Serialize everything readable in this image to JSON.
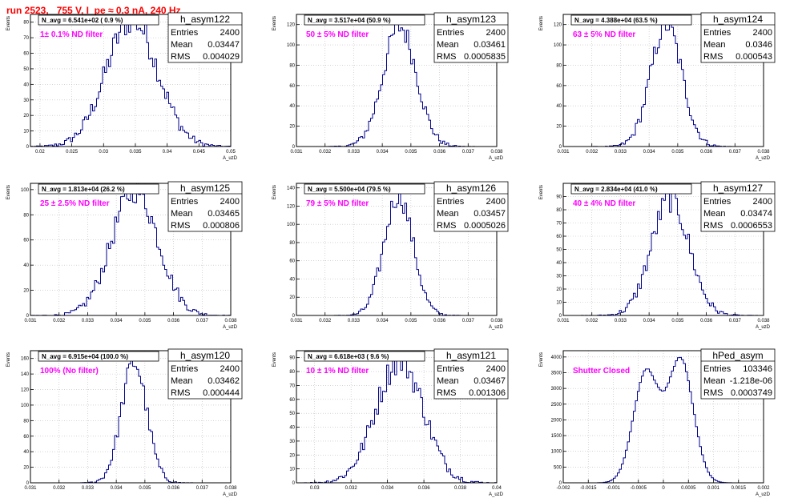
{
  "run_title": "run 2523,   755 V, I_pe ≈ 0.3 nA, 240 Hz",
  "colors": {
    "line": "#00008b",
    "title": "#ff0000",
    "filter_text": "#ff00ff",
    "grid": "#bbbbbb",
    "frame": "#000000"
  },
  "chart_data": [
    {
      "type": "histogram",
      "name": "h_asym122",
      "navg": "N_avg = 6.541e+02 ( 0.9 %)",
      "filter": "1± 0.1% ND filter",
      "stats": {
        "Entries": "2400",
        "Mean": "0.03447",
        "RMS": "0.004029"
      },
      "xlabel": "A_uzD",
      "ylabel": "Events",
      "xlim": [
        0.0185,
        0.05
      ],
      "ylim": [
        0,
        85
      ],
      "xticks": [
        0.02,
        0.025,
        0.03,
        0.035,
        0.04,
        0.045,
        0.05
      ],
      "xtick_labels": [
        "0.02",
        "0.025",
        "0.03",
        "0.035",
        "0.04",
        "0.045",
        "0.05"
      ],
      "yticks": [
        0,
        10,
        20,
        30,
        40,
        50,
        60,
        70,
        80
      ],
      "ytick_labels": [
        "0",
        "10",
        "20",
        "30",
        "40",
        "50",
        "60",
        "70",
        "80"
      ],
      "grid": true,
      "mean": 0.03447,
      "rms": 0.004029,
      "peak": 82,
      "bins": 100
    },
    {
      "type": "histogram",
      "name": "h_asym123",
      "navg": "N_avg = 3.517e+04 (50.9 %)",
      "filter": "50 ± 5% ND filter",
      "stats": {
        "Entries": "2400",
        "Mean": "0.03461",
        "RMS": "0.0005835"
      },
      "xlabel": "A_uzD",
      "ylabel": "Events",
      "xlim": [
        0.031,
        0.038
      ],
      "ylim": [
        0,
        130
      ],
      "xticks": [
        0.031,
        0.032,
        0.033,
        0.034,
        0.035,
        0.036,
        0.037,
        0.038
      ],
      "xtick_labels": [
        "0.031",
        "0.032",
        "0.033",
        "0.034",
        "0.035",
        "0.036",
        "0.037",
        "0.038"
      ],
      "yticks": [
        0,
        20,
        40,
        60,
        80,
        100,
        120
      ],
      "ytick_labels": [
        "0",
        "20",
        "40",
        "60",
        "80",
        "100",
        "120"
      ],
      "grid": true,
      "mean": 0.03461,
      "rms": 0.0005835,
      "peak": 118,
      "bins": 100
    },
    {
      "type": "histogram",
      "name": "h_asym124",
      "navg": "N_avg = 4.388e+04 (63.5 %)",
      "filter": "63 ± 5% ND filter",
      "stats": {
        "Entries": "2400",
        "Mean": "0.0346",
        "RMS": "0.000543"
      },
      "xlabel": "A_uzD",
      "ylabel": "Events",
      "xlim": [
        0.031,
        0.038
      ],
      "ylim": [
        0,
        130
      ],
      "xticks": [
        0.031,
        0.032,
        0.033,
        0.034,
        0.035,
        0.036,
        0.037,
        0.038
      ],
      "xtick_labels": [
        "0.031",
        "0.032",
        "0.033",
        "0.034",
        "0.035",
        "0.036",
        "0.037",
        "0.038"
      ],
      "yticks": [
        0,
        20,
        40,
        60,
        80,
        100,
        120
      ],
      "ytick_labels": [
        "0",
        "20",
        "40",
        "60",
        "80",
        "100",
        "120"
      ],
      "grid": true,
      "mean": 0.0346,
      "rms": 0.000543,
      "peak": 120,
      "bins": 100
    },
    {
      "type": "histogram",
      "name": "h_asym125",
      "navg": "N_avg = 1.813e+04 (26.2 %)",
      "filter": "25 ± 2.5% ND filter",
      "stats": {
        "Entries": "2400",
        "Mean": "0.03465",
        "RMS": "0.000806"
      },
      "xlabel": "A_uzD",
      "ylabel": "Events",
      "xlim": [
        0.031,
        0.038
      ],
      "ylim": [
        0,
        105
      ],
      "xticks": [
        0.031,
        0.032,
        0.033,
        0.034,
        0.035,
        0.036,
        0.037,
        0.038
      ],
      "xtick_labels": [
        "0.031",
        "0.032",
        "0.033",
        "0.034",
        "0.035",
        "0.036",
        "0.037",
        "0.038"
      ],
      "yticks": [
        0,
        20,
        40,
        60,
        80,
        100
      ],
      "ytick_labels": [
        "0",
        "20",
        "40",
        "60",
        "80",
        "100"
      ],
      "grid": true,
      "mean": 0.03465,
      "rms": 0.000806,
      "peak": 100,
      "bins": 100
    },
    {
      "type": "histogram",
      "name": "h_asym126",
      "navg": "N_avg = 5.500e+04 (79.5 %)",
      "filter": "79 ± 5% ND filter",
      "stats": {
        "Entries": "2400",
        "Mean": "0.03457",
        "RMS": "0.0005026"
      },
      "xlabel": "A_uzD",
      "ylabel": "Events",
      "xlim": [
        0.031,
        0.038
      ],
      "ylim": [
        0,
        145
      ],
      "xticks": [
        0.031,
        0.032,
        0.033,
        0.034,
        0.035,
        0.036,
        0.037,
        0.038
      ],
      "xtick_labels": [
        "0.031",
        "0.032",
        "0.033",
        "0.034",
        "0.035",
        "0.036",
        "0.037",
        "0.038"
      ],
      "yticks": [
        0,
        20,
        40,
        60,
        80,
        100,
        120,
        140
      ],
      "ytick_labels": [
        "0",
        "20",
        "40",
        "60",
        "80",
        "100",
        "120",
        "140"
      ],
      "grid": true,
      "mean": 0.03457,
      "rms": 0.0005026,
      "peak": 132,
      "bins": 100
    },
    {
      "type": "histogram",
      "name": "h_asym127",
      "navg": "N_avg = 2.834e+04 (41.0 %)",
      "filter": "40 ± 4% ND filter",
      "stats": {
        "Entries": "2400",
        "Mean": "0.03474",
        "RMS": "0.0006553"
      },
      "xlabel": "A_uzD",
      "ylabel": "Events",
      "xlim": [
        0.031,
        0.038
      ],
      "ylim": [
        0,
        100
      ],
      "xticks": [
        0.031,
        0.032,
        0.033,
        0.034,
        0.035,
        0.036,
        0.037,
        0.038
      ],
      "xtick_labels": [
        "0.031",
        "0.032",
        "0.033",
        "0.034",
        "0.035",
        "0.036",
        "0.037",
        "0.038"
      ],
      "yticks": [
        0,
        10,
        20,
        30,
        40,
        50,
        60,
        70,
        80,
        90
      ],
      "ytick_labels": [
        "0",
        "10",
        "20",
        "30",
        "40",
        "50",
        "60",
        "70",
        "80",
        "90"
      ],
      "grid": true,
      "mean": 0.03474,
      "rms": 0.0006553,
      "peak": 88,
      "bins": 100
    },
    {
      "type": "histogram",
      "name": "h_asym120",
      "navg": "N_avg = 6.915e+04 (100.0 %)",
      "filter": "100% (No filter)",
      "stats": {
        "Entries": "2400",
        "Mean": "0.03462",
        "RMS": "0.000444"
      },
      "xlabel": "A_uzD",
      "ylabel": "Events",
      "xlim": [
        0.031,
        0.038
      ],
      "ylim": [
        0,
        170
      ],
      "xticks": [
        0.031,
        0.032,
        0.033,
        0.034,
        0.035,
        0.036,
        0.037,
        0.038
      ],
      "xtick_labels": [
        "0.031",
        "0.032",
        "0.033",
        "0.034",
        "0.035",
        "0.036",
        "0.037",
        "0.038"
      ],
      "yticks": [
        0,
        20,
        40,
        60,
        80,
        100,
        120,
        140,
        160
      ],
      "ytick_labels": [
        "0",
        "20",
        "40",
        "60",
        "80",
        "100",
        "120",
        "140",
        "160"
      ],
      "grid": true,
      "mean": 0.03462,
      "rms": 0.000444,
      "peak": 155,
      "bins": 100
    },
    {
      "type": "histogram",
      "name": "h_asym121",
      "navg": "N_avg = 6.618e+03 ( 9.6 %)",
      "filter": "10 ± 1% ND filter",
      "stats": {
        "Entries": "2400",
        "Mean": "0.03467",
        "RMS": "0.001306"
      },
      "xlabel": "A_uzD",
      "ylabel": "Events",
      "xlim": [
        0.029,
        0.04
      ],
      "ylim": [
        0,
        95
      ],
      "xticks": [
        0.03,
        0.032,
        0.034,
        0.036,
        0.038,
        0.04
      ],
      "xtick_labels": [
        "0.03",
        "0.032",
        "0.034",
        "0.036",
        "0.038",
        "0.04"
      ],
      "yticks": [
        0,
        10,
        20,
        30,
        40,
        50,
        60,
        70,
        80,
        90
      ],
      "ytick_labels": [
        "0",
        "10",
        "20",
        "30",
        "40",
        "50",
        "60",
        "70",
        "80",
        "90"
      ],
      "grid": true,
      "mean": 0.03467,
      "rms": 0.001306,
      "peak": 88,
      "bins": 100
    },
    {
      "type": "histogram",
      "name": "hPed_asym",
      "navg": "",
      "filter": "Shutter Closed",
      "stats": {
        "Entries": "103346",
        "Mean": "-1.218e-06",
        "RMS": "0.0003749"
      },
      "xlabel": "A_uzD",
      "ylabel": "Events",
      "xlim": [
        -0.002,
        0.002
      ],
      "ylim": [
        0,
        4200
      ],
      "xticks": [
        -0.002,
        -0.0015,
        -0.001,
        -0.0005,
        0,
        0.0005,
        0.001,
        0.0015,
        0.002
      ],
      "xtick_labels": [
        "-0.002",
        "-0.0015",
        "-0.001",
        "-0.0005",
        "0",
        "0.0005",
        "0.001",
        "0.0015",
        "0.002"
      ],
      "yticks": [
        0,
        500,
        1000,
        1500,
        2000,
        2500,
        3000,
        3500,
        4000
      ],
      "ytick_labels": [
        "0",
        "500",
        "1000",
        "1500",
        "2000",
        "2500",
        "3000",
        "3500",
        "4000"
      ],
      "grid": true,
      "mean": -1.2e-06,
      "rms": 0.0003749,
      "peak": 3950,
      "bins": 100,
      "bimodal": true
    }
  ]
}
